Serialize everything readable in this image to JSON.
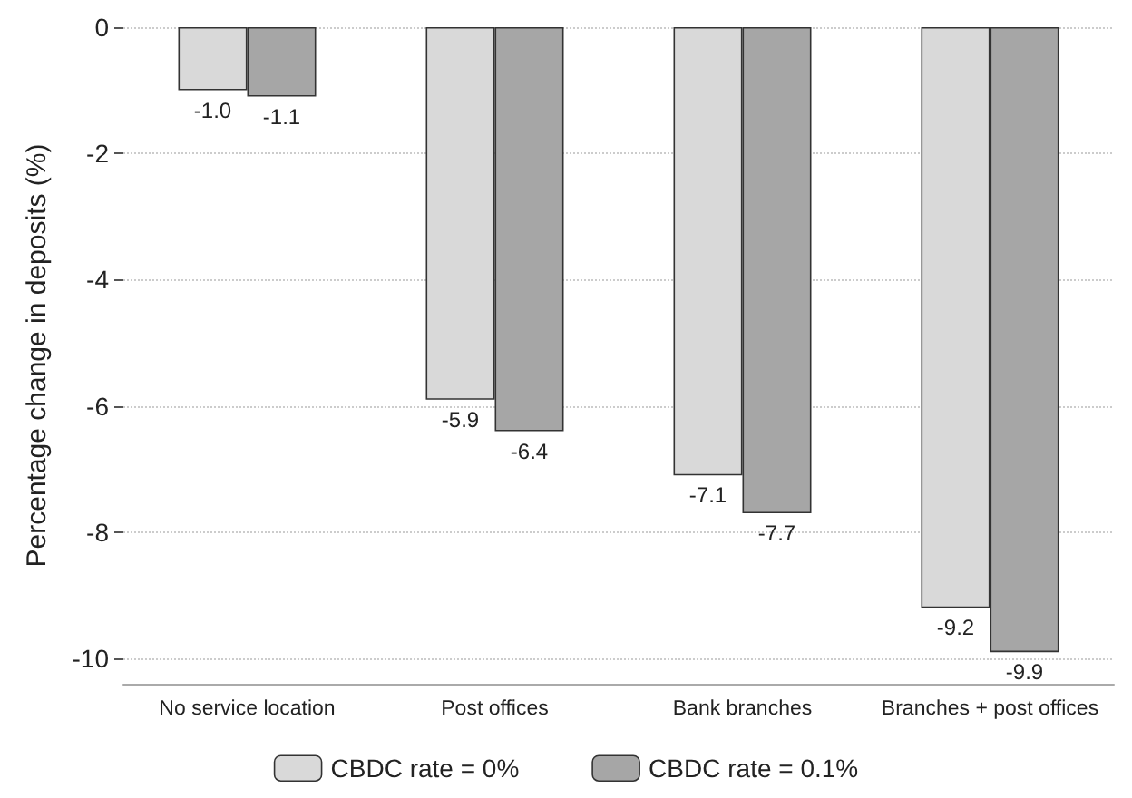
{
  "chart_data": {
    "type": "bar",
    "ylabel": "Percentage change in deposits (%)",
    "categories": [
      "No service location",
      "Post offices",
      "Bank branches",
      "Branches + post offices"
    ],
    "series": [
      {
        "name": "CBDC rate = 0%",
        "color": "#d9d9d9",
        "values": [
          -1.0,
          -5.9,
          -7.1,
          -9.2
        ],
        "value_labels": [
          "-1.0",
          "-5.9",
          "-7.1",
          "-9.2"
        ]
      },
      {
        "name": "CBDC rate = 0.1%",
        "color": "#a6a6a6",
        "values": [
          -1.1,
          -6.4,
          -7.7,
          -9.9
        ],
        "value_labels": [
          "-1.1",
          "-6.4",
          "-7.7",
          "-9.9"
        ]
      }
    ],
    "ylim": [
      -10.4,
      0
    ],
    "yticks": [
      0,
      -2,
      -4,
      -6,
      -8,
      -10
    ],
    "grid": "y",
    "legend": "bottom"
  }
}
